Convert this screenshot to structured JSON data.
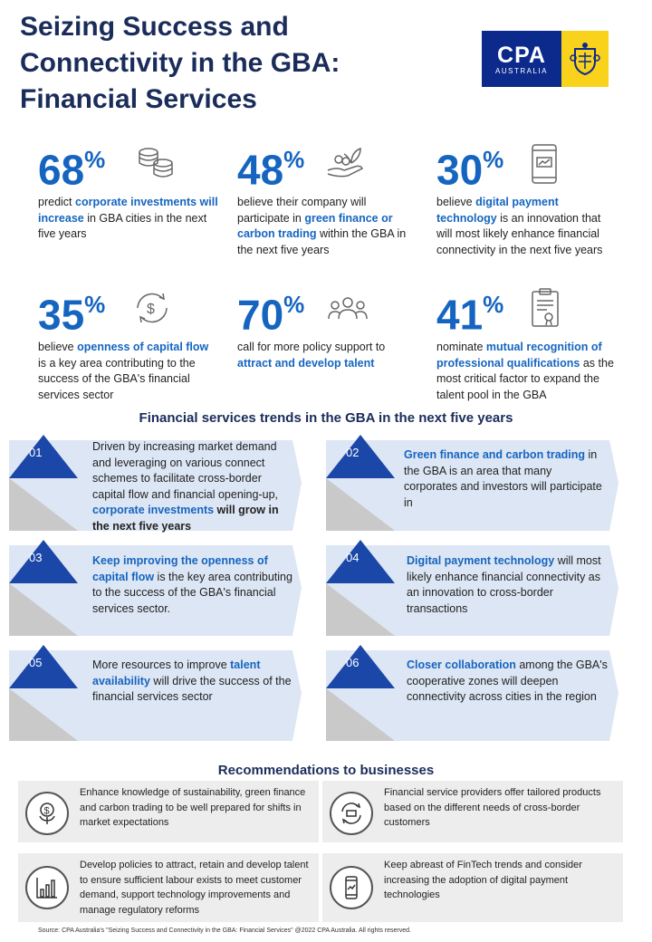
{
  "title": "Seizing Success and Connectivity in the GBA: Financial Services",
  "logo": {
    "brand": "CPA",
    "country": "AUSTRALIA"
  },
  "stats": [
    {
      "value": "68",
      "unit": "%",
      "pre": "predict ",
      "hl": "corporate investments will increase",
      "post": " in GBA cities in the next five years",
      "icon": "coins-icon"
    },
    {
      "value": "48",
      "unit": "%",
      "pre": "believe their company will participate in ",
      "hl": "green finance or carbon trading",
      "post": " within the GBA in the next five years",
      "icon": "green-finance-icon"
    },
    {
      "value": "30",
      "unit": "%",
      "pre": "believe ",
      "hl": "digital payment technology",
      "post": " is an innovation that will most likely enhance financial connectivity in the next five years",
      "icon": "mobile-payment-icon"
    },
    {
      "value": "35",
      "unit": "%",
      "pre": "believe ",
      "hl": "openness of capital flow",
      "post": " is a key area contributing to the success of the GBA's financial services sector",
      "icon": "capital-flow-icon"
    },
    {
      "value": "70",
      "unit": "%",
      "pre": "call for more policy support to ",
      "hl": "attract and develop talent",
      "post": "",
      "icon": "people-icon"
    },
    {
      "value": "41",
      "unit": "%",
      "pre": "nominate ",
      "hl": "mutual recognition of professional qualifications",
      "post": " as the most critical factor to expand the talent pool in the GBA",
      "icon": "certificate-icon"
    }
  ],
  "trends_title": "Financial services trends in the GBA in the next five years",
  "trends": [
    {
      "num": "01",
      "pre": "Driven by increasing market demand and leveraging on various connect schemes to facilitate cross-border capital flow and financial opening-up, ",
      "hl": "corporate investments",
      "post": "",
      "bold_post": " will grow in the next five years"
    },
    {
      "num": "02",
      "pre": "",
      "hl": "Green finance and carbon trading",
      "post": " in the GBA is an area that many corporates and investors will participate in",
      "bold_post": ""
    },
    {
      "num": "03",
      "pre": "",
      "hl": "Keep improving the openness of capital flow",
      "post": " is the key area contributing to the success of the GBA's financial services sector.",
      "bold_post": ""
    },
    {
      "num": "04",
      "pre": "",
      "hl": "Digital payment technology",
      "post": " will most likely enhance financial connectivity as an innovation to cross-border transactions",
      "bold_post": ""
    },
    {
      "num": "05",
      "pre": "More resources to improve ",
      "hl": "talent availability",
      "post": " will drive the success of the financial services sector",
      "bold_post": ""
    },
    {
      "num": "06",
      "pre": "",
      "hl": "Closer collaboration",
      "post": " among the GBA's cooperative zones will deepen connectivity across cities in the region",
      "bold_post": ""
    }
  ],
  "recs_title": "Recommendations to businesses",
  "recs": [
    {
      "text": "Enhance knowledge of sustainability, green finance and carbon trading to be well prepared for shifts in market expectations",
      "icon": "sustainable-money-icon"
    },
    {
      "text": "Financial service providers offer tailored products based on the different needs of cross-border customers",
      "icon": "exchange-icon"
    },
    {
      "text": "Develop policies to attract, retain and develop talent to ensure sufficient labour exists to meet customer demand, support technology improvements and manage regulatory reforms",
      "icon": "growth-chart-icon"
    },
    {
      "text": "Keep abreast of FinTech trends and consider increasing the adoption of digital payment technologies",
      "icon": "phone-icon"
    }
  ],
  "footer": "Source:  CPA Australia's  \"Seizing Success and Connectivity in the GBA: Financial Services\"   @2022 CPA Australia.  All rights reserved.",
  "colors": {
    "navy": "#1a2c5a",
    "accent": "#1565c0",
    "logo_blue": "#0b2a8c",
    "logo_yellow": "#f9d21c",
    "trend_bg": "#dde6f4"
  }
}
